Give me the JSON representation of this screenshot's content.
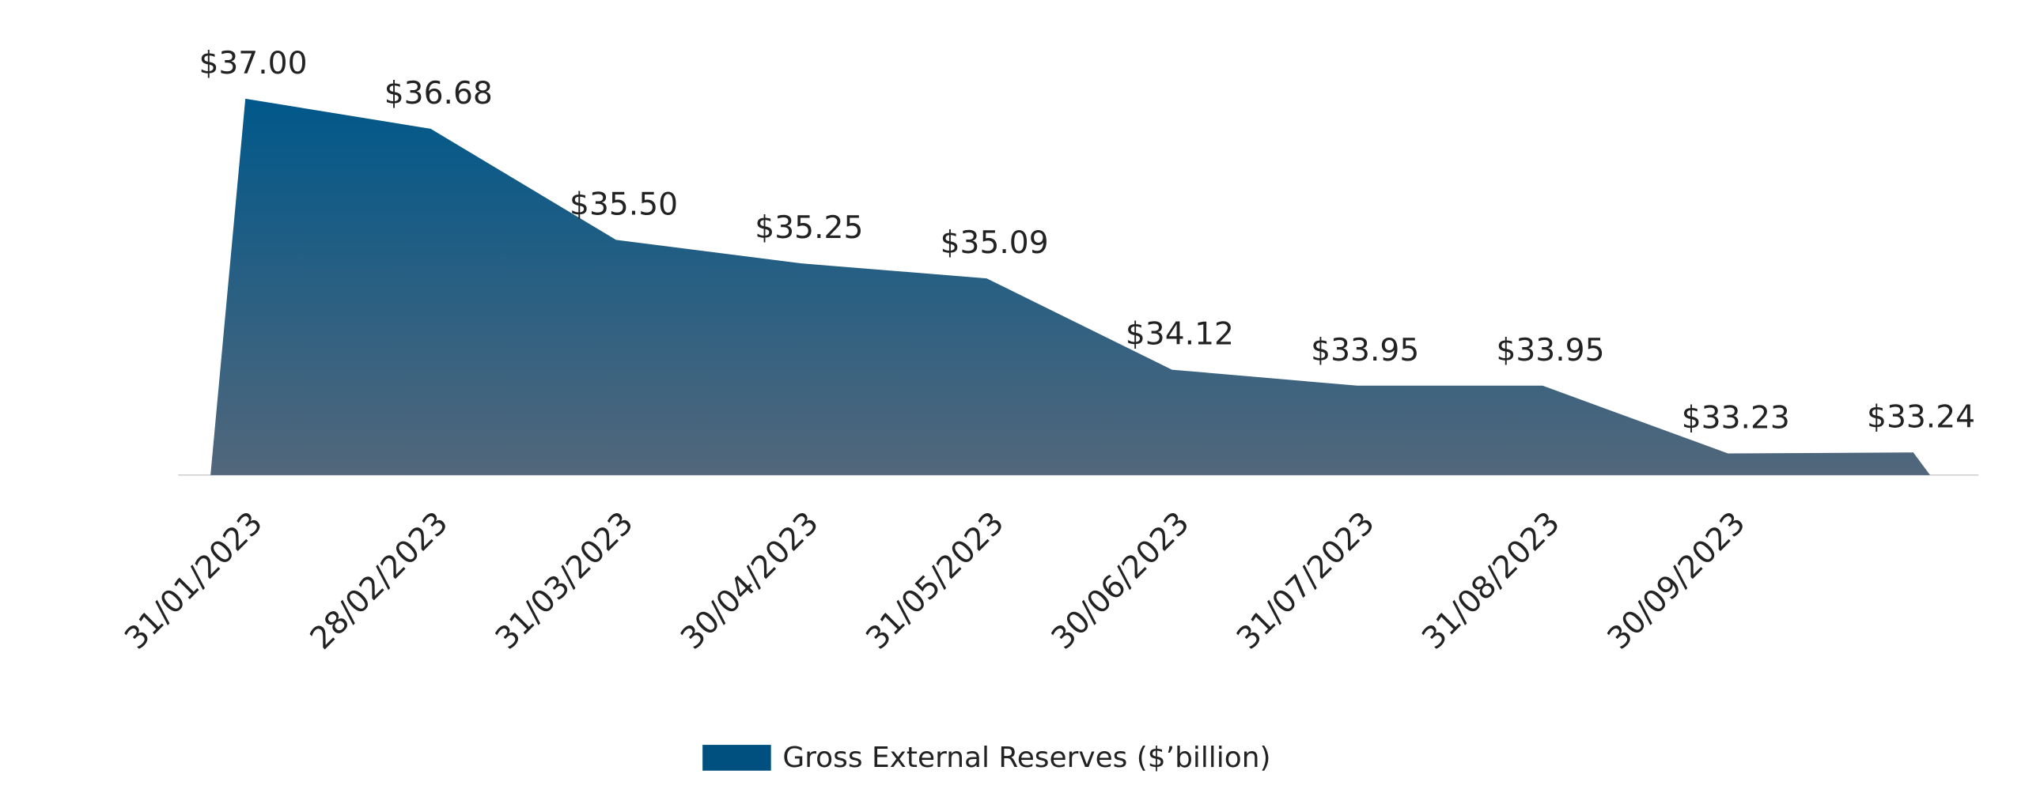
{
  "chart_data": {
    "type": "area",
    "categories": [
      "31/01/2023",
      "28/02/2023",
      "31/03/2023",
      "30/04/2023",
      "31/05/2023",
      "30/06/2023",
      "31/07/2023",
      "31/08/2023",
      "30/09/2023",
      null
    ],
    "series": [
      {
        "name": "Gross External Reserves ($’billion)",
        "color": "#00507f",
        "values": [
          37.0,
          36.68,
          35.5,
          35.25,
          35.09,
          34.12,
          33.95,
          33.95,
          33.23,
          33.24
        ],
        "value_labels": [
          "$37.00",
          "$36.68",
          "$35.50",
          "$35.25",
          "$35.09",
          "$34.12",
          "$33.95",
          "$33.95",
          "$33.23",
          "$33.24"
        ]
      }
    ],
    "ylim": [
      33,
      37.5
    ],
    "legend": "bottom"
  }
}
